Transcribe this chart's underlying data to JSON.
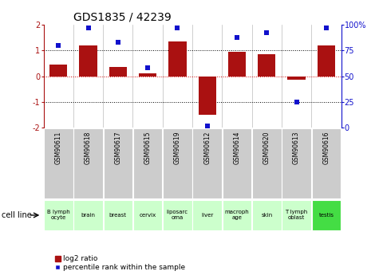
{
  "title": "GDS1835 / 42239",
  "samples": [
    "GSM90611",
    "GSM90618",
    "GSM90617",
    "GSM90615",
    "GSM90619",
    "GSM90612",
    "GSM90614",
    "GSM90620",
    "GSM90613",
    "GSM90616"
  ],
  "cell_lines": [
    "B lymph\nocyte",
    "brain",
    "breast",
    "cervix",
    "liposarc\noma",
    "liver",
    "macroph\nage",
    "skin",
    "T lymph\noblast",
    "testis"
  ],
  "cell_line_colors": [
    "#ccffcc",
    "#ccffcc",
    "#ccffcc",
    "#ccffcc",
    "#ccffcc",
    "#ccffcc",
    "#ccffcc",
    "#ccffcc",
    "#ccffcc",
    "#44dd44"
  ],
  "log2_ratio": [
    0.45,
    1.2,
    0.35,
    0.12,
    1.35,
    -1.5,
    0.95,
    0.85,
    -0.12,
    1.2
  ],
  "percentile_rank": [
    80,
    97,
    83,
    58,
    97,
    2,
    88,
    92,
    25,
    97
  ],
  "bar_color": "#aa1111",
  "dot_color": "#1111cc",
  "ylim_left": [
    -2,
    2
  ],
  "ylim_right": [
    0,
    100
  ],
  "left_ticks": [
    -2,
    -1,
    0,
    1,
    2
  ],
  "left_tick_labels": [
    "-2",
    "-1",
    "0",
    "1",
    "2"
  ],
  "right_ticks": [
    0,
    25,
    50,
    75,
    100
  ],
  "right_tick_labels": [
    "0",
    "25",
    "50",
    "75",
    "100%"
  ],
  "dotted_lines": [
    1.0,
    -1.0
  ],
  "zero_line_color": "#cc0000",
  "legend_label_bar": "log2 ratio",
  "legend_label_dot": "percentile rank within the sample",
  "cell_line_label": "cell line",
  "sample_bg_color": "#cccccc",
  "bar_width": 0.6
}
